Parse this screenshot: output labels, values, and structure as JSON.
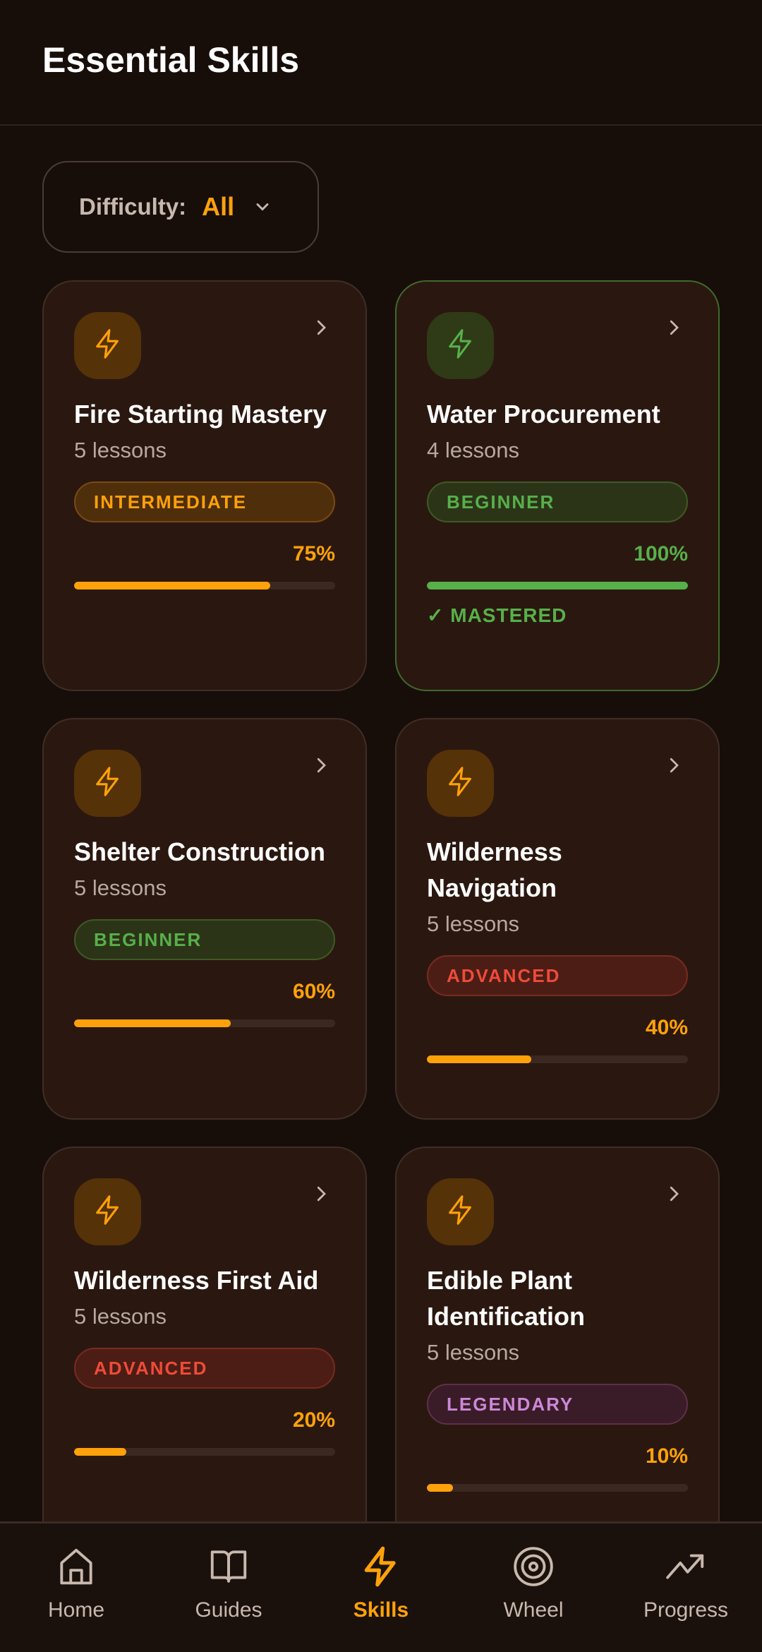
{
  "header": {
    "title": "Essential Skills"
  },
  "filter": {
    "label": "Difficulty:",
    "value": "All"
  },
  "colors": {
    "accent": "#ffa10a",
    "success": "#57b04a",
    "danger": "#ef4b3a",
    "legendary": "#cc88d8"
  },
  "skills": [
    {
      "title": "Fire Starting Mastery",
      "lessons": "5 lessons",
      "difficulty": "INTERMEDIATE",
      "progress_label": "75%",
      "progress": 75
    },
    {
      "title": "Water Procurement",
      "lessons": "4 lessons",
      "difficulty": "BEGINNER",
      "progress_label": "100%",
      "progress": 100,
      "status": "✓ MASTERED"
    },
    {
      "title": "Shelter Construction",
      "lessons": "5 lessons",
      "difficulty": "BEGINNER",
      "progress_label": "60%",
      "progress": 60
    },
    {
      "title": "Wilderness Navigation",
      "lessons": "5 lessons",
      "difficulty": "ADVANCED",
      "progress_label": "40%",
      "progress": 40
    },
    {
      "title": "Wilderness First Aid",
      "lessons": "5 lessons",
      "difficulty": "ADVANCED",
      "progress_label": "20%",
      "progress": 20
    },
    {
      "title": "Edible Plant Identification",
      "lessons": "5 lessons",
      "difficulty": "LEGENDARY",
      "progress_label": "10%",
      "progress": 10
    }
  ],
  "nav": [
    {
      "label": "Home",
      "icon": "home-icon"
    },
    {
      "label": "Guides",
      "icon": "book-icon"
    },
    {
      "label": "Skills",
      "icon": "lightning-icon",
      "active": true
    },
    {
      "label": "Wheel",
      "icon": "target-icon"
    },
    {
      "label": "Progress",
      "icon": "trending-up-icon"
    }
  ]
}
